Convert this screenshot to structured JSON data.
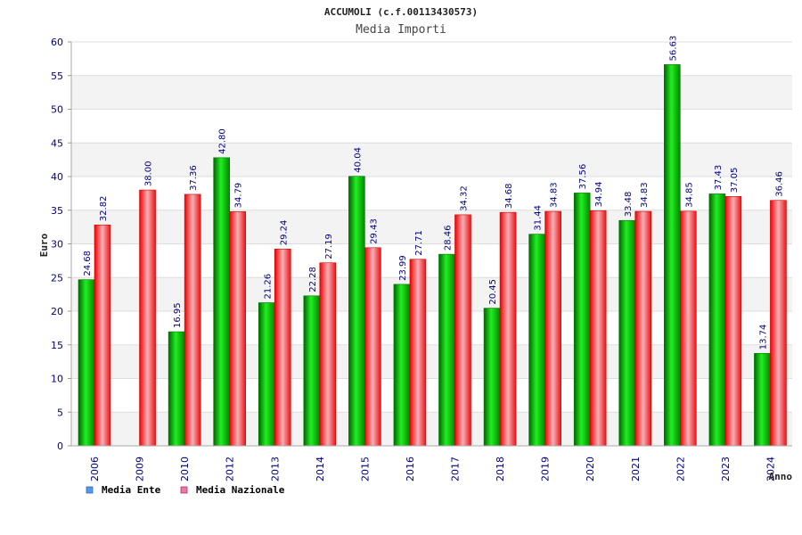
{
  "chart_data": {
    "type": "bar",
    "title": "ACCUMOLI (c.f.00113430573)",
    "subtitle": "Media Importi",
    "xlabel": "Anno",
    "ylabel": "Euro",
    "ylim": [
      0,
      60
    ],
    "yticks": [
      0,
      5,
      10,
      15,
      20,
      25,
      30,
      35,
      40,
      45,
      50,
      55,
      60
    ],
    "categories": [
      "2006",
      "2009",
      "2010",
      "2012",
      "2013",
      "2014",
      "2015",
      "2016",
      "2017",
      "2018",
      "2019",
      "2020",
      "2021",
      "2022",
      "2023",
      "2024"
    ],
    "series": [
      {
        "name": "Media Ente",
        "color": "#00cc00",
        "values": [
          24.68,
          null,
          16.95,
          42.8,
          21.26,
          22.28,
          40.04,
          23.99,
          28.46,
          20.45,
          31.44,
          37.56,
          33.48,
          56.63,
          37.43,
          13.74
        ],
        "labels": [
          "24.68",
          "",
          "16.95",
          "42.80",
          "21.26",
          "22.28",
          "40.04",
          "23.99",
          "28.46",
          "20.45",
          "31.44",
          "37.56",
          "33.48",
          "56.63",
          "37.43",
          "13.74"
        ]
      },
      {
        "name": "Media Nazionale",
        "color": "#ee2233",
        "values": [
          32.82,
          38.0,
          37.36,
          34.79,
          29.24,
          27.19,
          29.43,
          27.71,
          34.32,
          34.68,
          34.83,
          34.94,
          34.83,
          34.85,
          37.05,
          36.46
        ],
        "labels": [
          "32.82",
          "38.00",
          "37.36",
          "34.79",
          "29.24",
          "27.19",
          "29.43",
          "27.71",
          "34.32",
          "34.68",
          "34.83",
          "34.94",
          "34.83",
          "34.85",
          "37.05",
          "36.46"
        ]
      }
    ],
    "legend": {
      "position": "bottom-left",
      "items": [
        {
          "label": "Media Ente",
          "color": "#5599ee"
        },
        {
          "label": "Media Nazionale",
          "color": "#ee77aa"
        }
      ]
    },
    "grid": true
  }
}
